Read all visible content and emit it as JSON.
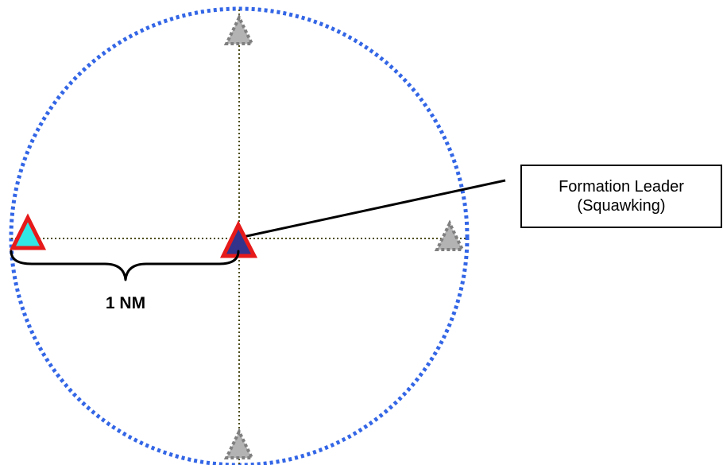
{
  "callout": {
    "line1": "Formation Leader",
    "line2": "(Squawking)"
  },
  "distance_label": "1 NM",
  "colors": {
    "ring": "#3366e6",
    "crosshair": "#4d4d1a",
    "leader_fill": "#33338c",
    "wingman_fill": "#33e6e6",
    "marker_outline": "#e61a1a",
    "ghost_fill": "#b3b3b3",
    "ghost_outline": "#7f7f7f",
    "lines": "#000000"
  }
}
